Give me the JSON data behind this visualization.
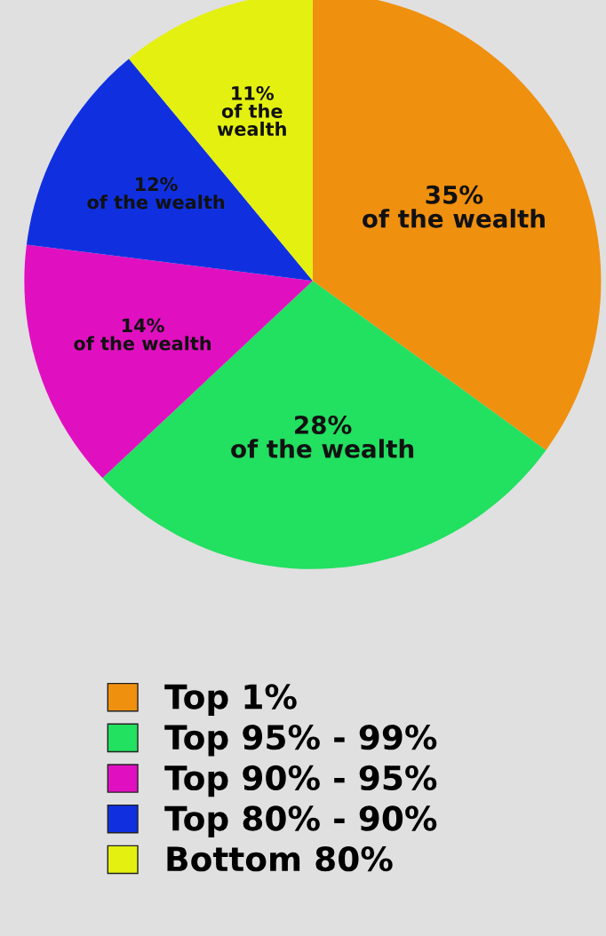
{
  "chart_data": {
    "type": "pie",
    "categories": [
      "Top 1%",
      "Top 95% - 99%",
      "Top 90% - 95%",
      "Top 80% - 90%",
      "Bottom 80%"
    ],
    "values": [
      35,
      28,
      14,
      12,
      11
    ],
    "colors": [
      "#f0900f",
      "#22e060",
      "#e010c0",
      "#1030e0",
      "#e4f010"
    ],
    "value_labels": [
      "35%\nof the wealth",
      "28%\nof the wealth",
      "14%\nof the wealth",
      "12%\nof the wealth",
      "11%\nof the\nwealth"
    ],
    "legend": "bottom"
  }
}
